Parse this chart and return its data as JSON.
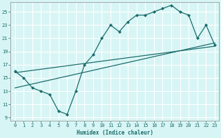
{
  "xlabel": "Humidex (Indice chaleur)",
  "bg_color": "#d8f5f5",
  "grid_color": "#ffffff",
  "line_color": "#1a6b6b",
  "xlim": [
    -0.5,
    23.5
  ],
  "ylim": [
    8.5,
    26.5
  ],
  "yticks": [
    9,
    11,
    13,
    15,
    17,
    19,
    21,
    23,
    25
  ],
  "xticks": [
    0,
    1,
    2,
    3,
    4,
    5,
    6,
    7,
    8,
    9,
    10,
    11,
    12,
    13,
    14,
    15,
    16,
    17,
    18,
    19,
    20,
    21,
    22,
    23
  ],
  "line1_x": [
    0,
    1,
    2,
    3,
    4,
    5,
    6,
    7,
    8,
    9,
    10,
    11,
    12,
    13,
    14,
    15,
    16,
    17,
    18,
    19,
    20,
    21,
    22,
    23
  ],
  "line1_y": [
    16.0,
    15.0,
    13.5,
    13.0,
    12.5,
    10.0,
    9.5,
    13.0,
    17.0,
    18.5,
    21.0,
    23.0,
    22.0,
    23.5,
    24.5,
    24.5,
    25.0,
    25.5,
    26.0,
    25.0,
    24.5,
    21.0,
    23.0,
    20.0
  ],
  "line2_x": [
    0,
    23
  ],
  "line2_y": [
    13.5,
    20.3
  ],
  "line3_x": [
    0,
    23
  ],
  "line3_y": [
    15.8,
    19.8
  ]
}
